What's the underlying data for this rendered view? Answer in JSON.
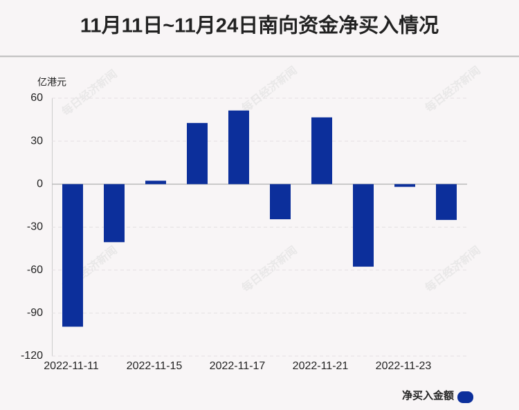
{
  "chart_data": {
    "type": "bar",
    "title": "11月11日~11月24日南向资金净买入情况",
    "y_label": "亿港元",
    "categories": [
      "2022-11-11",
      null,
      "2022-11-15",
      null,
      "2022-11-17",
      null,
      "2022-11-21",
      null,
      "2022-11-23",
      null
    ],
    "series": [
      {
        "name": "净买入金额",
        "color": "#0c2f9b",
        "values": [
          -99.5,
          -40.5,
          2.4,
          42.7,
          51.4,
          -24.5,
          46.6,
          -57.6,
          -1.9,
          -25
        ]
      }
    ],
    "ylim": [
      -120,
      60
    ],
    "yticks": [
      -120,
      -90,
      -60,
      -30,
      0,
      30,
      60
    ],
    "grid": true,
    "watermark": "每日经济新闻"
  }
}
